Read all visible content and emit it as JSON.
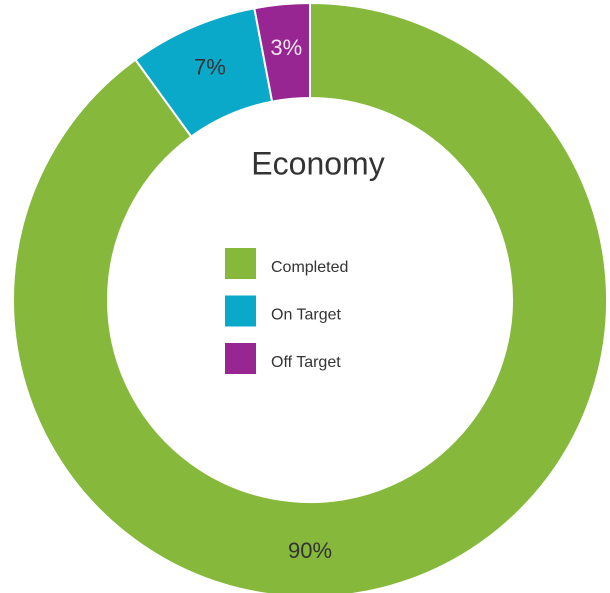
{
  "chart_data": {
    "type": "donut",
    "title": "Economy",
    "categories": [
      "Completed",
      "On Target",
      "Off Target"
    ],
    "values": [
      90,
      7,
      3
    ],
    "value_labels": [
      "90%",
      "7%",
      "3%"
    ],
    "colors": [
      "#86b83b",
      "#0aa9c9",
      "#972592"
    ],
    "legend": "center"
  }
}
